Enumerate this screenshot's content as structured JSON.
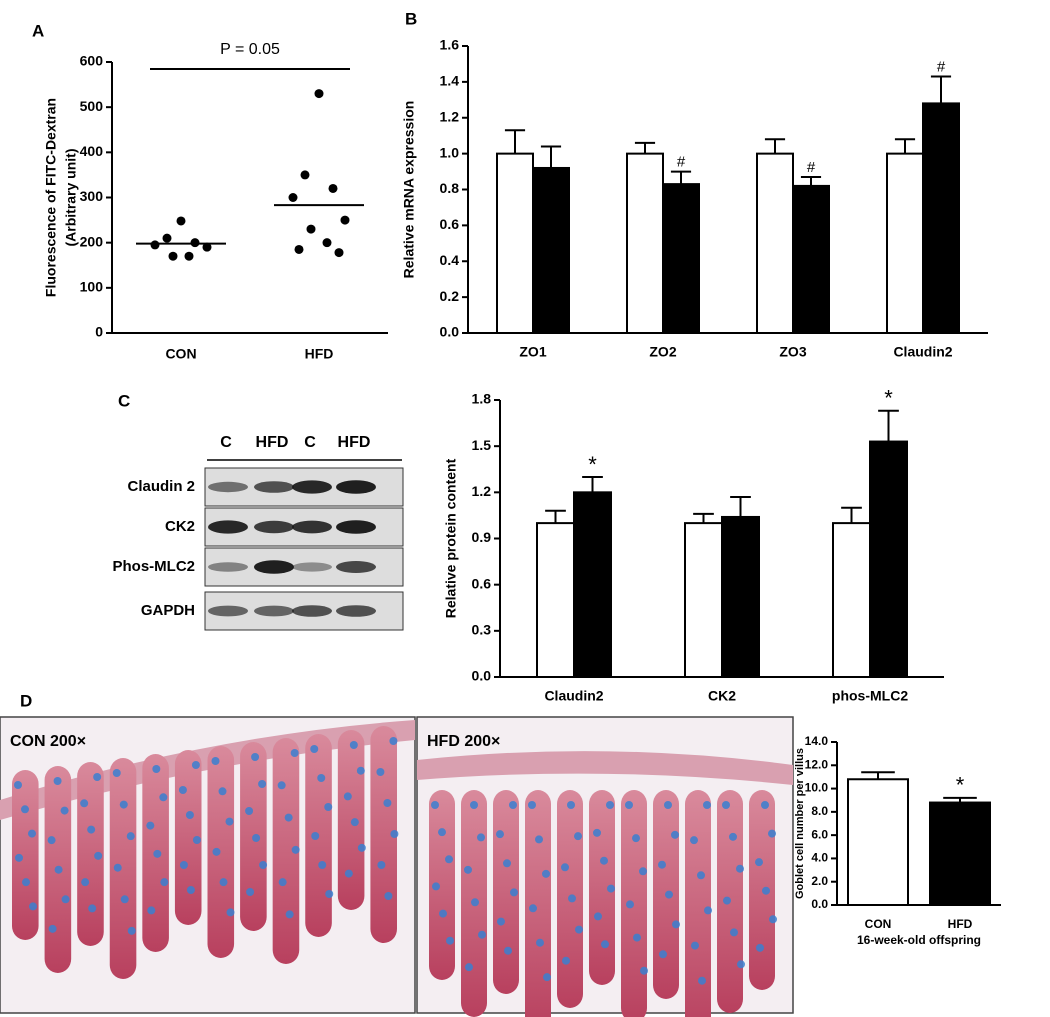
{
  "panels": [
    "A",
    "B",
    "C",
    "D"
  ],
  "blot": {
    "lanes": [
      "C",
      "HFD",
      "C",
      "HFD"
    ],
    "rows": [
      "Claudin 2",
      "CK2",
      "Phos-MLC2",
      "GAPDH"
    ]
  },
  "micrographs": [
    "CON 200×",
    "HFD 200×"
  ],
  "chart_data": [
    {
      "type": "scatter",
      "categories": [
        "CON",
        "HFD"
      ],
      "points": [
        [
          248,
          210,
          200,
          195,
          190,
          170,
          170
        ],
        [
          530,
          350,
          320,
          300,
          250,
          230,
          200,
          185,
          178
        ]
      ],
      "means": [
        198,
        283
      ],
      "color": "#000000",
      "annotation": "P = 0.05",
      "ylabel": "Fluorescence of FITC-Dextran",
      "ylabel2": "(Arbitrary unit)",
      "ylim": [
        0,
        600
      ],
      "yticks": [
        0,
        100,
        200,
        300,
        400,
        500,
        600
      ]
    },
    {
      "type": "bar",
      "categories": [
        "ZO1",
        "ZO2",
        "ZO3",
        "Claudin2"
      ],
      "series": [
        {
          "color": "#ffffff",
          "values": [
            1.0,
            1.0,
            1.0,
            1.0
          ],
          "errors": [
            0.13,
            0.06,
            0.08,
            0.08
          ]
        },
        {
          "color": "#000000",
          "values": [
            0.92,
            0.83,
            0.82,
            1.28
          ],
          "errors": [
            0.12,
            0.07,
            0.05,
            0.15
          ]
        }
      ],
      "significance": [
        null,
        "#",
        "#",
        "#"
      ],
      "ylabel": "Relative mRNA expression",
      "ylim": [
        0,
        1.6
      ],
      "yticks": [
        {
          "value": 0,
          "label": "0.0"
        },
        0.2,
        0.4,
        0.6,
        0.8,
        {
          "value": 1,
          "label": "1.0"
        },
        1.2,
        1.4,
        1.6
      ]
    },
    {
      "type": "bar",
      "categories": [
        "Claudin2",
        "CK2",
        "phos-MLC2"
      ],
      "series": [
        {
          "color": "#ffffff",
          "values": [
            1.0,
            1.0,
            1.0
          ],
          "errors": [
            0.08,
            0.06,
            0.1
          ]
        },
        {
          "color": "#000000",
          "values": [
            1.2,
            1.04,
            1.53
          ],
          "errors": [
            0.1,
            0.13,
            0.2
          ]
        }
      ],
      "significance": [
        "*",
        null,
        "*"
      ],
      "ylabel": "Relative protein content",
      "ylim": [
        0,
        1.8
      ],
      "yticks": [
        {
          "value": 0,
          "label": "0.0"
        },
        0.3,
        0.6,
        0.9,
        1.2,
        1.5,
        1.8
      ]
    },
    {
      "type": "bar",
      "categories": [
        "CON",
        "HFD"
      ],
      "series": [
        {
          "color": "#ffffff",
          "values": [
            10.8,
            null
          ],
          "errors": [
            0.6,
            null
          ]
        },
        {
          "color": "#000000",
          "values": [
            null,
            8.8
          ],
          "errors": [
            null,
            0.4
          ]
        }
      ],
      "significance": [
        null,
        "*"
      ],
      "ylabel": "Goblet cell number per villus",
      "xlabel": "16-week-old offspring",
      "ylim": [
        0,
        14
      ],
      "yticks": [
        {
          "value": 0,
          "label": "0.0"
        },
        {
          "value": 2,
          "label": "2.0"
        },
        {
          "value": 4,
          "label": "4.0"
        },
        {
          "value": 6,
          "label": "6.0"
        },
        {
          "value": 8,
          "label": "8.0"
        },
        {
          "value": 10,
          "label": "10.0"
        },
        {
          "value": 12,
          "label": "12.0"
        },
        {
          "value": 14,
          "label": "14.0"
        }
      ]
    }
  ]
}
